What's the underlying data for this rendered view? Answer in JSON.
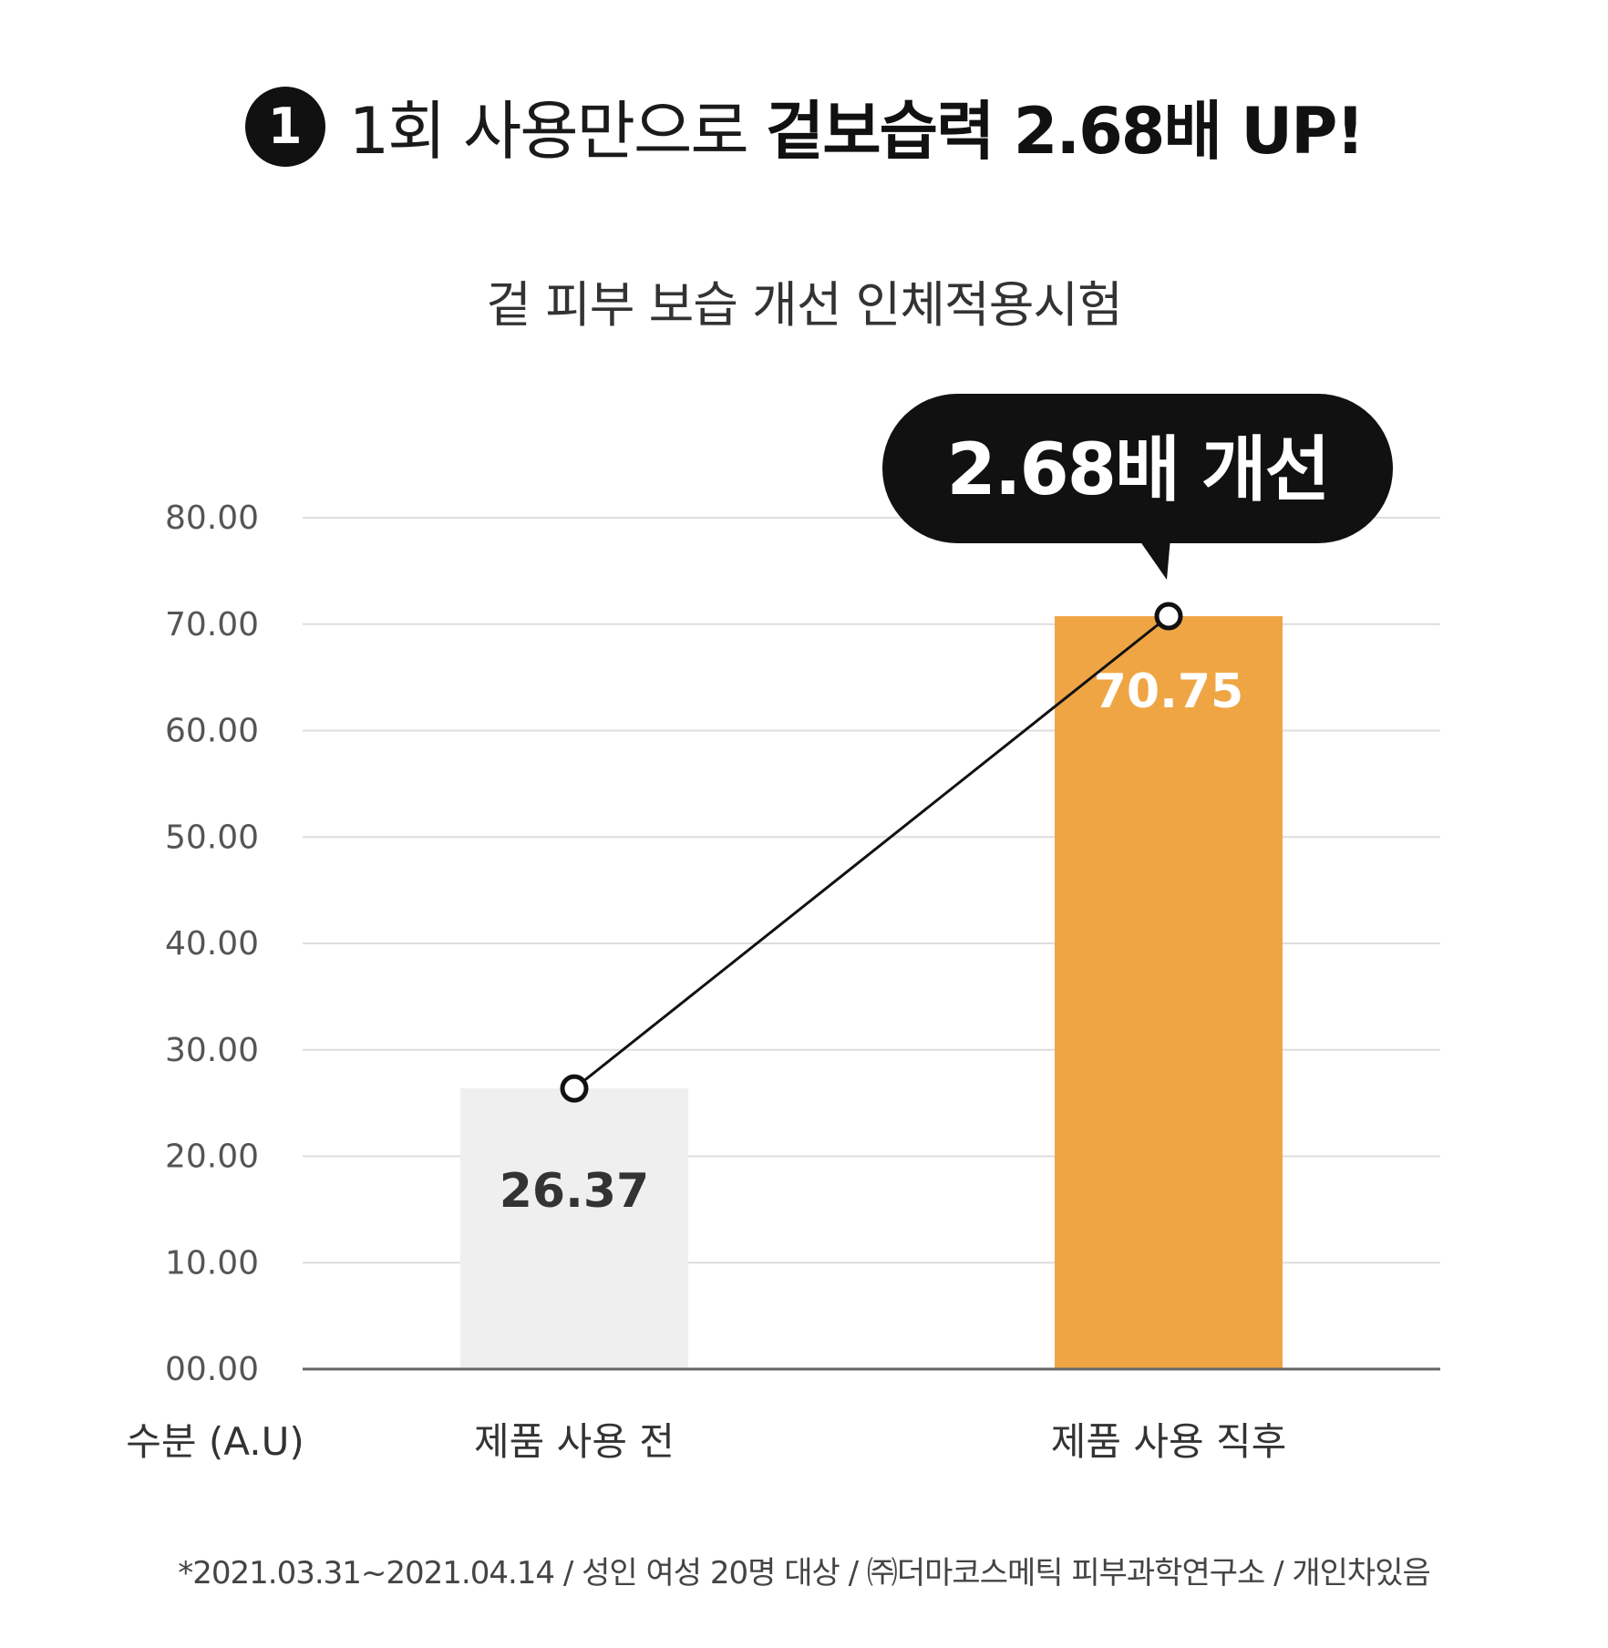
{
  "header": {
    "badge": "1",
    "title_light": "1회 사용만으로",
    "title_bold": "겉보습력 2.68배 UP!"
  },
  "chart_data": {
    "type": "bar",
    "title": "겉 피부 보습 개선 인체적용시험",
    "ylabel": "수분 (A.U)",
    "categories": [
      "제품 사용 전",
      "제품 사용 직후"
    ],
    "values": [
      26.37,
      70.75
    ],
    "value_labels": [
      "26.37",
      "70.75"
    ],
    "ylim": [
      0,
      80
    ],
    "y_ticks": [
      "00.00",
      "10.00",
      "20.00",
      "30.00",
      "40.00",
      "50.00",
      "60.00",
      "70.00",
      "80.00"
    ],
    "grid": true,
    "bar_colors": [
      "#efefef",
      "#f0a545"
    ],
    "value_label_colors": [
      "#333333",
      "#ffffff"
    ],
    "connector_line": true,
    "callout": "2.68배 개선"
  },
  "footnote": "*2021.03.31~2021.04.14 / 성인 여성 20명 대상 / ㈜더마코스메틱 피부과학연구소 / 개인차있음"
}
